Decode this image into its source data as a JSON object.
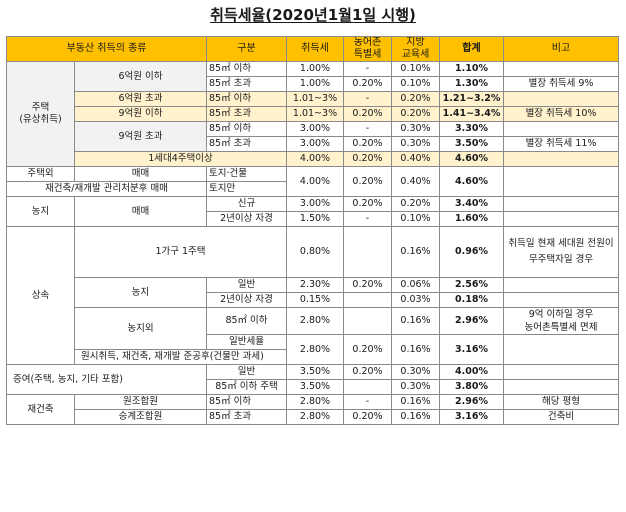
{
  "title": "취득세율(2020년1월1일 시행)",
  "headers": [
    "부동산 취득의 종류",
    "구분",
    "취득세",
    "농어촌\n특별세",
    "지방\n교육세",
    "합계",
    "비고"
  ],
  "rows": {
    "housing_group": "주택\n(유상취득)",
    "r1": {
      "sub": "6억원 이하",
      "area": "85㎡ 이하",
      "tax": "1.00%",
      "rural": "-",
      "edu": "0.10%",
      "total": "1.10%",
      "note": ""
    },
    "r2": {
      "area": "85㎡ 초과",
      "tax": "1.00%",
      "rural": "0.20%",
      "edu": "0.10%",
      "total": "1.30%",
      "note": "별장 취득세 9%"
    },
    "r3": {
      "sub": "6억원 초과",
      "area": "85㎡ 이하",
      "tax": "1.01~3%",
      "rural": "-",
      "edu": "0.20%",
      "total": "1.21~3.2%",
      "note": ""
    },
    "r4": {
      "sub": "9억원 이하",
      "area": "85㎡ 초과",
      "tax": "1.01~3%",
      "rural": "0.20%",
      "edu": "0.20%",
      "total": "1.41~3.4%",
      "note": "별장 취득세 10%"
    },
    "r5": {
      "sub": "9억원 초과",
      "area": "85㎡ 이하",
      "tax": "3.00%",
      "rural": "-",
      "edu": "0.30%",
      "total": "3.30%",
      "note": ""
    },
    "r6": {
      "area": "85㎡ 초과",
      "tax": "3.00%",
      "rural": "0.20%",
      "edu": "0.30%",
      "total": "3.50%",
      "note": "별장 취득세 11%"
    },
    "r7": {
      "sub": "1세대4주택이상",
      "tax": "4.00%",
      "rural": "0.20%",
      "edu": "0.40%",
      "total": "4.60%",
      "note": ""
    },
    "r8": {
      "group": "주택외",
      "sub": "매매",
      "area": "토지·건물",
      "tax": "4.00%",
      "rural": "0.20%",
      "edu": "0.40%",
      "total": "4.60%",
      "note": ""
    },
    "r9": {
      "group": "재건축/재개발 관리처분후 매매",
      "area": "토지만"
    },
    "r10": {
      "group": "농지",
      "sub": "매매",
      "area": "신규",
      "tax": "3.00%",
      "rural": "0.20%",
      "edu": "0.20%",
      "total": "3.40%",
      "note": ""
    },
    "r11": {
      "area": "2년이상 자경",
      "tax": "1.50%",
      "rural": "-",
      "edu": "0.10%",
      "total": "1.60%",
      "note": ""
    },
    "inherit_group": "상속",
    "r12": {
      "sub": "1가구 1주택",
      "tax": "0.80%",
      "rural": "",
      "edu": "0.16%",
      "total": "0.96%",
      "note": "취득일 현재 세대원 전원이 무주택자일 경우"
    },
    "r13": {
      "sub": "농지",
      "area": "일반",
      "tax": "2.30%",
      "rural": "0.20%",
      "edu": "0.06%",
      "total": "2.56%",
      "note": ""
    },
    "r14": {
      "area": "2년이상 자경",
      "tax": "0.15%",
      "rural": "",
      "edu": "0.03%",
      "total": "0.18%",
      "note": ""
    },
    "r15": {
      "sub": "농지외",
      "area": "85㎡ 이하",
      "tax": "2.80%",
      "rural": "",
      "edu": "0.16%",
      "total": "2.96%",
      "note": "9억 이하일 경우\n농어촌특별세 면제"
    },
    "r16": {
      "area": "일반세율"
    },
    "r17": {
      "group": "원시취득, 재건축, 재개발 준공후(건물만 과세)",
      "tax": "2.80%",
      "rural": "0.20%",
      "edu": "0.16%",
      "total": "3.16%",
      "note": ""
    },
    "r18": {
      "group": "증여(주택, 농지, 기타 포함)",
      "area": "일반",
      "tax": "3.50%",
      "rural": "0.20%",
      "edu": "0.30%",
      "total": "4.00%",
      "note": ""
    },
    "r19": {
      "area": "85㎡ 이하 주택",
      "tax": "3.50%",
      "rural": "",
      "edu": "0.30%",
      "total": "3.80%",
      "note": ""
    },
    "r20": {
      "group": "재건축",
      "sub": "원조합원",
      "area": "85㎡ 이하",
      "tax": "2.80%",
      "rural": "-",
      "edu": "0.16%",
      "total": "2.96%",
      "note": "해당 평형"
    },
    "r21": {
      "sub": "승계조합원",
      "area": "85㎡ 초과",
      "tax": "2.80%",
      "rural": "0.20%",
      "edu": "0.16%",
      "total": "3.16%",
      "note": "건축비"
    }
  }
}
